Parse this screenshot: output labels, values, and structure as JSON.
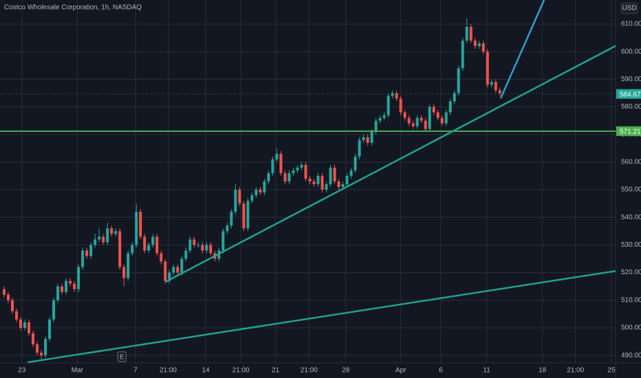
{
  "chart_data": {
    "type": "candlestick",
    "title": "Costco Wholesale Corporation, 1h, NASDAQ",
    "currency": "USD",
    "up_color": "#26a69a",
    "down_color": "#ef5350",
    "x": [
      1,
      2,
      3,
      4,
      5,
      6,
      7,
      8,
      9,
      10,
      11,
      12,
      13,
      14,
      15,
      16,
      17,
      18,
      19,
      20,
      21,
      22,
      23,
      24,
      25,
      26,
      27,
      28,
      29,
      30,
      31,
      32,
      33,
      34,
      35,
      36,
      37,
      38,
      39,
      40,
      41,
      42,
      43,
      44,
      45,
      46,
      47,
      48,
      49,
      50,
      51,
      52,
      53,
      54,
      55,
      56,
      57,
      58,
      59,
      60,
      61,
      62,
      63,
      64,
      65,
      66,
      67,
      68,
      69,
      70,
      71,
      72,
      73,
      74,
      75,
      76,
      77,
      78,
      79,
      80,
      81,
      82,
      83,
      84,
      85,
      86,
      87,
      88,
      89,
      90,
      91,
      92,
      93,
      94,
      95,
      96,
      97,
      98,
      99,
      100,
      101,
      102,
      103,
      104,
      105,
      106,
      107,
      108,
      109,
      110,
      111,
      112,
      113,
      114,
      115,
      116,
      117,
      118,
      119,
      120,
      121
    ],
    "open": [
      514,
      512,
      510,
      506,
      503,
      500,
      502,
      498,
      494,
      491,
      490,
      496,
      503,
      510,
      515,
      513,
      517,
      516,
      514,
      522,
      528,
      526,
      530,
      532,
      533,
      531,
      536,
      534,
      535,
      522,
      518,
      527,
      530,
      542,
      533,
      528,
      530,
      533,
      527,
      524,
      517,
      520,
      522,
      520,
      525,
      528,
      532,
      530,
      530,
      528,
      530,
      527,
      525,
      528,
      535,
      537,
      542,
      550,
      545,
      536,
      546,
      548,
      550,
      549,
      553,
      556,
      561,
      563,
      556,
      553,
      556,
      557,
      558,
      559,
      554,
      553,
      552,
      555,
      550,
      552,
      558,
      553,
      551,
      552,
      555,
      557,
      562,
      568,
      569,
      567,
      571,
      575,
      576,
      577,
      584,
      585,
      583,
      578,
      576,
      574,
      573,
      576,
      575,
      572,
      580,
      578,
      576,
      574,
      578,
      582,
      585,
      594,
      604,
      609,
      604,
      602,
      603,
      600,
      588,
      589,
      586
    ],
    "high": [
      515,
      513,
      511,
      507,
      504,
      503,
      503,
      499,
      495,
      492,
      497,
      504,
      511,
      516,
      516,
      518,
      518,
      517,
      523,
      529,
      529,
      531,
      534,
      536,
      534,
      538,
      537,
      536,
      536,
      523,
      528,
      531,
      545,
      543,
      534,
      531,
      534,
      534,
      528,
      525,
      521,
      523,
      523,
      526,
      529,
      533,
      533,
      531,
      531,
      531,
      531,
      528,
      529,
      536,
      538,
      543,
      552,
      551,
      546,
      547,
      549,
      551,
      551,
      554,
      557,
      562,
      565,
      564,
      557,
      557,
      558,
      559,
      560,
      560,
      555,
      554,
      556,
      556,
      553,
      559,
      559,
      554,
      553,
      556,
      558,
      563,
      569,
      570,
      570,
      572,
      576,
      577,
      578,
      585,
      586,
      586,
      584,
      579,
      577,
      575,
      577,
      577,
      576,
      581,
      581,
      579,
      577,
      579,
      583,
      586,
      595,
      605,
      612,
      610,
      605,
      604,
      604,
      601,
      590,
      590,
      587
    ],
    "low": [
      511,
      509,
      505,
      502,
      499,
      499,
      497,
      493,
      490,
      488,
      489,
      495,
      502,
      509,
      512,
      512,
      515,
      513,
      513,
      521,
      525,
      525,
      529,
      531,
      530,
      530,
      533,
      533,
      521,
      515,
      517,
      526,
      529,
      532,
      527,
      527,
      529,
      526,
      523,
      516,
      516,
      519,
      519,
      519,
      524,
      527,
      529,
      529,
      527,
      527,
      526,
      524,
      524,
      527,
      534,
      536,
      541,
      544,
      535,
      535,
      545,
      547,
      548,
      548,
      552,
      555,
      560,
      555,
      552,
      552,
      555,
      556,
      557,
      553,
      552,
      551,
      551,
      549,
      549,
      551,
      552,
      550,
      550,
      551,
      554,
      556,
      561,
      567,
      566,
      566,
      570,
      574,
      575,
      576,
      583,
      582,
      577,
      575,
      573,
      572,
      572,
      574,
      571,
      571,
      577,
      575,
      573,
      573,
      577,
      581,
      584,
      593,
      603,
      603,
      601,
      601,
      599,
      587,
      587,
      585,
      584
    ],
    "close": [
      512,
      510,
      506,
      503,
      500,
      502,
      498,
      494,
      491,
      490,
      496,
      503,
      510,
      515,
      513,
      517,
      516,
      514,
      522,
      528,
      526,
      530,
      532,
      533,
      531,
      536,
      534,
      535,
      522,
      518,
      527,
      530,
      542,
      533,
      528,
      530,
      533,
      527,
      524,
      517,
      520,
      522,
      520,
      525,
      528,
      532,
      530,
      530,
      528,
      530,
      527,
      525,
      528,
      535,
      537,
      542,
      550,
      545,
      536,
      546,
      548,
      550,
      549,
      553,
      556,
      561,
      563,
      556,
      553,
      556,
      557,
      558,
      559,
      554,
      553,
      552,
      555,
      550,
      552,
      558,
      553,
      551,
      552,
      555,
      557,
      562,
      568,
      569,
      567,
      571,
      575,
      576,
      577,
      584,
      585,
      583,
      578,
      576,
      574,
      573,
      576,
      575,
      572,
      580,
      578,
      576,
      574,
      578,
      582,
      585,
      594,
      604,
      609,
      604,
      602,
      603,
      600,
      588,
      589,
      586,
      585
    ],
    "xlim": [
      0,
      149
    ],
    "xticks": [
      {
        "value": 5.3,
        "label": "23"
      },
      {
        "value": 18.7,
        "label": "Mar"
      },
      {
        "value": 32.8,
        "label": "7"
      },
      {
        "value": 40.7,
        "label": "21:00"
      },
      {
        "value": 49.8,
        "label": "14"
      },
      {
        "value": 58.3,
        "label": "21:00"
      },
      {
        "value": 66.7,
        "label": "21"
      },
      {
        "value": 74.8,
        "label": "21:00"
      },
      {
        "value": 83.7,
        "label": "28"
      },
      {
        "value": 97,
        "label": "Apr"
      },
      {
        "value": 106.7,
        "label": "6"
      },
      {
        "value": 117.8,
        "label": "11"
      },
      {
        "value": 131.3,
        "label": "18"
      },
      {
        "value": 139.3,
        "label": "21:00"
      },
      {
        "value": 148,
        "label": "25"
      }
    ],
    "ylim": [
      487.3,
      618.7
    ],
    "yticks": [
      {
        "value": 490,
        "label": "490.00"
      },
      {
        "value": 500,
        "label": "500.00"
      },
      {
        "value": 510,
        "label": "510.00"
      },
      {
        "value": 520,
        "label": "520.00"
      },
      {
        "value": 530,
        "label": "530.00"
      },
      {
        "value": 540,
        "label": "540.00"
      },
      {
        "value": 550,
        "label": "550.00"
      },
      {
        "value": 560,
        "label": "560.00"
      },
      {
        "value": 570,
        "label": "570.00"
      },
      {
        "value": 580,
        "label": "580.00"
      },
      {
        "value": 590,
        "label": "590.00"
      },
      {
        "value": 600,
        "label": "600.00"
      },
      {
        "value": 610,
        "label": "610.00"
      }
    ],
    "grid": true,
    "trend_lines": [
      {
        "color": "#1fa38f",
        "x": [
          6.67,
          149.17
        ],
        "y": [
          487.5,
          520.6
        ]
      },
      {
        "color": "#1fa38f",
        "x": [
          40,
          149.17
        ],
        "y": [
          516.6,
          602.2
        ]
      },
      {
        "color": "#2ba3c9",
        "x": [
          121.2,
          131.7
        ],
        "y": [
          583.1,
          618.7
        ]
      }
    ],
    "horizontal_line": {
      "value": 571.21,
      "color": "#4caf50"
    },
    "last_price": {
      "value": 584.67,
      "color": "#26a69a"
    },
    "earnings_marker": {
      "x": 29.5,
      "label": "E"
    }
  }
}
